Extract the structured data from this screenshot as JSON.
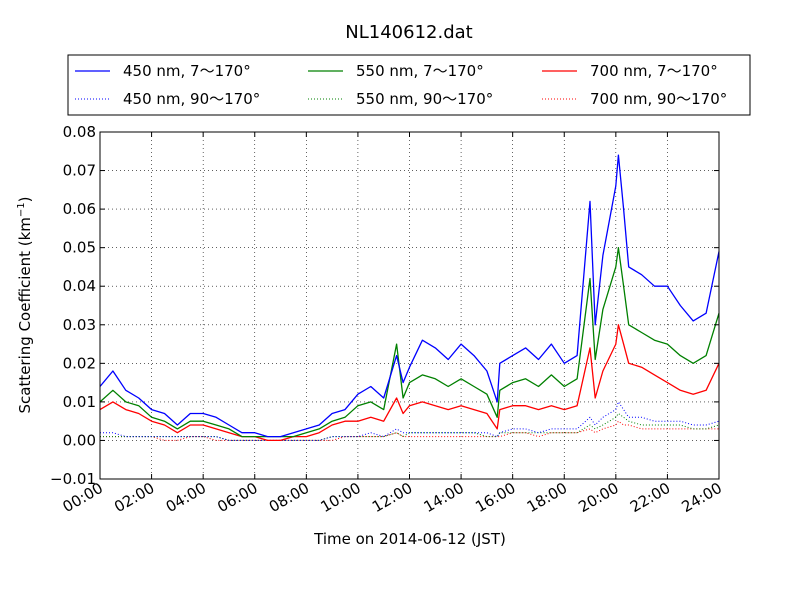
{
  "chart_data": {
    "type": "line",
    "title": "NL140612.dat",
    "xlabel": "Time on 2014-06-12 (JST)",
    "ylabel": "Scattering Coefficient (km",
    "ylabel_exponent": "−1",
    "ylabel_close": ")",
    "xlim": [
      "00:00",
      "24:00"
    ],
    "ylim": [
      -0.01,
      0.08
    ],
    "grid": true,
    "legend_position": "top (above plot)",
    "x_ticks": [
      "00:00",
      "02:00",
      "04:00",
      "06:00",
      "08:00",
      "10:00",
      "12:00",
      "14:00",
      "16:00",
      "18:00",
      "20:00",
      "22:00",
      "24:00"
    ],
    "y_ticks": [
      "−0.01",
      "0.00",
      "0.01",
      "0.02",
      "0.03",
      "0.04",
      "0.05",
      "0.06",
      "0.07",
      "0.08"
    ],
    "x": [
      0,
      0.5,
      1,
      1.5,
      2,
      2.5,
      3,
      3.5,
      4,
      4.5,
      5,
      5.5,
      6,
      6.5,
      7,
      7.5,
      8,
      8.5,
      9,
      9.5,
      10,
      10.5,
      11,
      11.5,
      11.75,
      12,
      12.5,
      13,
      13.5,
      14,
      14.5,
      15,
      15.4,
      15.5,
      16,
      16.5,
      17,
      17.5,
      18,
      18.5,
      19,
      19.2,
      19.5,
      20,
      20.1,
      20.3,
      20.5,
      21,
      21.5,
      22,
      22.5,
      23,
      23.5,
      24
    ],
    "series": [
      {
        "name": "450 nm, 7～170°",
        "color": "#0000ff",
        "style": "solid",
        "values": [
          0.014,
          0.018,
          0.013,
          0.011,
          0.008,
          0.007,
          0.004,
          0.007,
          0.007,
          0.006,
          0.004,
          0.002,
          0.002,
          0.001,
          0.001,
          0.002,
          0.003,
          0.004,
          0.007,
          0.008,
          0.012,
          0.014,
          0.011,
          0.022,
          0.015,
          0.019,
          0.026,
          0.024,
          0.021,
          0.025,
          0.022,
          0.018,
          0.01,
          0.02,
          0.022,
          0.024,
          0.021,
          0.025,
          0.02,
          0.022,
          0.062,
          0.03,
          0.048,
          0.066,
          0.074,
          0.06,
          0.045,
          0.043,
          0.04,
          0.04,
          0.035,
          0.031,
          0.033,
          0.049
        ]
      },
      {
        "name": "450 nm, 90～170°",
        "color": "#0000ff",
        "style": "dotted",
        "values": [
          0.002,
          0.002,
          0.001,
          0.001,
          0.001,
          0.001,
          0.001,
          0.001,
          0.001,
          0.001,
          0.0,
          0.0,
          0.0,
          0.0,
          0.0,
          0.0,
          0.0,
          0.0,
          0.001,
          0.001,
          0.001,
          0.002,
          0.001,
          0.003,
          0.002,
          0.002,
          0.002,
          0.002,
          0.002,
          0.002,
          0.002,
          0.002,
          0.001,
          0.002,
          0.003,
          0.003,
          0.002,
          0.003,
          0.003,
          0.003,
          0.006,
          0.004,
          0.006,
          0.008,
          0.01,
          0.008,
          0.006,
          0.006,
          0.005,
          0.005,
          0.005,
          0.004,
          0.004,
          0.005
        ]
      },
      {
        "name": "550 nm, 7～170°",
        "color": "#008000",
        "style": "solid",
        "values": [
          0.01,
          0.013,
          0.01,
          0.009,
          0.006,
          0.005,
          0.003,
          0.005,
          0.005,
          0.004,
          0.003,
          0.001,
          0.001,
          0.001,
          0.001,
          0.001,
          0.002,
          0.003,
          0.005,
          0.006,
          0.009,
          0.01,
          0.008,
          0.025,
          0.011,
          0.015,
          0.017,
          0.016,
          0.014,
          0.016,
          0.014,
          0.012,
          0.006,
          0.013,
          0.015,
          0.016,
          0.014,
          0.017,
          0.014,
          0.016,
          0.042,
          0.021,
          0.034,
          0.045,
          0.05,
          0.04,
          0.03,
          0.028,
          0.026,
          0.025,
          0.022,
          0.02,
          0.022,
          0.033
        ]
      },
      {
        "name": "550 nm, 90～170°",
        "color": "#008000",
        "style": "dotted",
        "values": [
          0.001,
          0.001,
          0.001,
          0.001,
          0.001,
          0.001,
          0.001,
          0.001,
          0.001,
          0.001,
          0.0,
          0.0,
          0.0,
          0.0,
          0.0,
          0.0,
          0.0,
          0.0,
          0.001,
          0.001,
          0.001,
          0.001,
          0.001,
          0.002,
          0.001,
          0.002,
          0.002,
          0.002,
          0.002,
          0.002,
          0.002,
          0.001,
          0.001,
          0.002,
          0.002,
          0.002,
          0.002,
          0.002,
          0.002,
          0.002,
          0.004,
          0.003,
          0.004,
          0.006,
          0.007,
          0.006,
          0.005,
          0.004,
          0.004,
          0.004,
          0.004,
          0.003,
          0.003,
          0.004
        ]
      },
      {
        "name": "700 nm, 7～170°",
        "color": "#ff0000",
        "style": "solid",
        "values": [
          0.008,
          0.01,
          0.008,
          0.007,
          0.005,
          0.004,
          0.002,
          0.004,
          0.004,
          0.003,
          0.002,
          0.001,
          0.001,
          0.0,
          0.0,
          0.001,
          0.001,
          0.002,
          0.004,
          0.005,
          0.005,
          0.006,
          0.005,
          0.011,
          0.007,
          0.009,
          0.01,
          0.009,
          0.008,
          0.009,
          0.008,
          0.007,
          0.003,
          0.008,
          0.009,
          0.009,
          0.008,
          0.009,
          0.008,
          0.009,
          0.024,
          0.011,
          0.018,
          0.025,
          0.03,
          0.025,
          0.02,
          0.019,
          0.017,
          0.015,
          0.013,
          0.012,
          0.013,
          0.02
        ]
      },
      {
        "name": "700 nm, 90～170°",
        "color": "#ff0000",
        "style": "dotted",
        "values": [
          0.001,
          0.001,
          0.001,
          0.001,
          0.001,
          0.0,
          0.0,
          0.001,
          0.001,
          0.0,
          0.0,
          0.0,
          0.0,
          0.0,
          0.0,
          0.0,
          0.0,
          0.0,
          0.0,
          0.001,
          0.001,
          0.001,
          0.001,
          0.002,
          0.001,
          0.001,
          0.001,
          0.001,
          0.001,
          0.001,
          0.001,
          0.001,
          0.001,
          0.001,
          0.002,
          0.002,
          0.001,
          0.002,
          0.002,
          0.002,
          0.003,
          0.002,
          0.003,
          0.004,
          0.005,
          0.004,
          0.004,
          0.003,
          0.003,
          0.003,
          0.003,
          0.003,
          0.003,
          0.003
        ]
      }
    ]
  }
}
